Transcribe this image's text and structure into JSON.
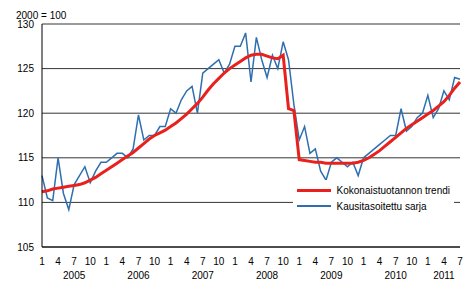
{
  "chart_data": {
    "type": "line",
    "ylabel": "2000 = 100",
    "categories": [
      "1",
      null,
      null,
      "4",
      null,
      null,
      "7",
      null,
      null,
      "10",
      null,
      null,
      "1",
      null,
      null,
      "4",
      null,
      null,
      "7",
      null,
      null,
      "10",
      null,
      null,
      "1",
      null,
      null,
      "4",
      null,
      null,
      "7",
      null,
      null,
      "10",
      null,
      null,
      "1",
      null,
      null,
      "4",
      null,
      null,
      "7",
      null,
      null,
      "10",
      null,
      null,
      "1",
      null,
      null,
      "4",
      null,
      null,
      "7",
      null,
      null,
      "10",
      null,
      null,
      "1",
      null,
      null,
      "4",
      null,
      null,
      "7",
      null,
      null,
      "10",
      null,
      null,
      "1",
      null,
      null,
      "4",
      null,
      null,
      "7"
    ],
    "year_labels": [
      "2005",
      "2006",
      "2007",
      "2008",
      "2009",
      "2010",
      "2011"
    ],
    "series": [
      {
        "name": "Kokonaistuotannon trendi",
        "color": "#e8211d",
        "values": [
          111.2,
          111.3,
          111.5,
          111.6,
          111.7,
          111.8,
          111.9,
          112.0,
          112.2,
          112.5,
          112.8,
          113.2,
          113.6,
          114.0,
          114.4,
          114.8,
          115.2,
          115.6,
          116.1,
          116.6,
          117.1,
          117.5,
          117.8,
          118.1,
          118.5,
          118.9,
          119.4,
          119.9,
          120.5,
          121.1,
          121.8,
          122.6,
          123.3,
          123.9,
          124.5,
          125.0,
          125.4,
          125.8,
          126.2,
          126.5,
          126.6,
          126.6,
          126.4,
          126.2,
          126.1,
          126.5,
          120.5,
          120.3,
          114.8,
          114.7,
          114.6,
          114.5,
          114.5,
          114.4,
          114.4,
          114.4,
          114.4,
          114.4,
          114.4,
          114.5,
          114.7,
          115.0,
          115.4,
          115.8,
          116.3,
          116.8,
          117.3,
          117.8,
          118.3,
          118.7,
          119.1,
          119.5,
          119.9,
          120.3,
          120.8,
          121.3,
          122.0,
          122.8,
          123.5
        ]
      },
      {
        "name": "Kausitasoitettu sarja",
        "color": "#2f6fb0",
        "values": [
          113.0,
          110.5,
          110.2,
          115.0,
          111.0,
          109.2,
          112.0,
          113.0,
          114.0,
          112.2,
          113.5,
          114.5,
          114.5,
          115.0,
          115.5,
          115.5,
          115.0,
          116.0,
          119.8,
          117.0,
          117.5,
          117.5,
          118.5,
          118.5,
          120.5,
          120.0,
          121.5,
          122.5,
          123.0,
          120.0,
          124.5,
          125.0,
          125.5,
          126.0,
          124.5,
          125.5,
          127.5,
          127.5,
          129.0,
          123.5,
          128.5,
          126.0,
          124.0,
          126.5,
          125.0,
          128.0,
          126.0,
          121.0,
          117.0,
          118.5,
          115.5,
          116.0,
          113.5,
          112.5,
          114.5,
          115.0,
          114.5,
          114.0,
          114.5,
          113.0,
          115.0,
          115.5,
          116.0,
          116.5,
          117.0,
          117.5,
          117.5,
          120.5,
          118.0,
          118.5,
          119.5,
          120.0,
          122.0,
          119.5,
          120.5,
          122.5,
          121.5,
          124.0,
          123.8
        ]
      }
    ],
    "ylim": [
      105,
      130
    ],
    "yticks": [
      105,
      110,
      115,
      120,
      125,
      130
    ],
    "grid": true,
    "legend": "lower right"
  }
}
